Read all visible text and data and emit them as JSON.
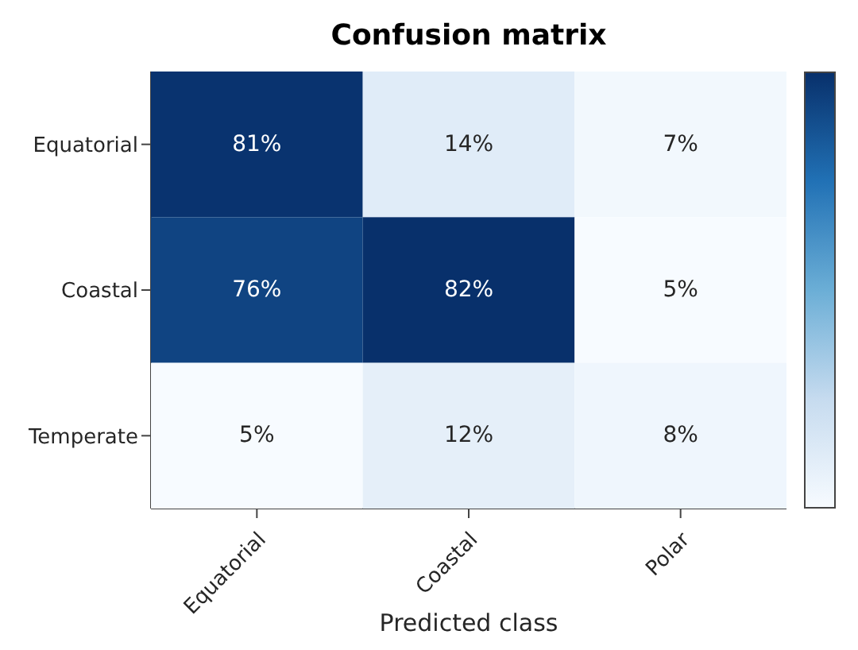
{
  "chart_data": {
    "type": "heatmap",
    "title": "Confusion matrix",
    "xlabel": "Predicted class",
    "categories": [
      "Equatorial",
      "Coastal",
      "Polar"
    ],
    "y_categories": [
      "Equatorial",
      "Coastal",
      "Temperate"
    ],
    "cells": [
      [
        81,
        14,
        7
      ],
      [
        76,
        82,
        5
      ],
      [
        5,
        12,
        8
      ]
    ],
    "cell_labels": [
      [
        "81%",
        "14%",
        "7%"
      ],
      [
        "76%",
        "82%",
        "5%"
      ],
      [
        "5%",
        "12%",
        "8%"
      ]
    ]
  }
}
